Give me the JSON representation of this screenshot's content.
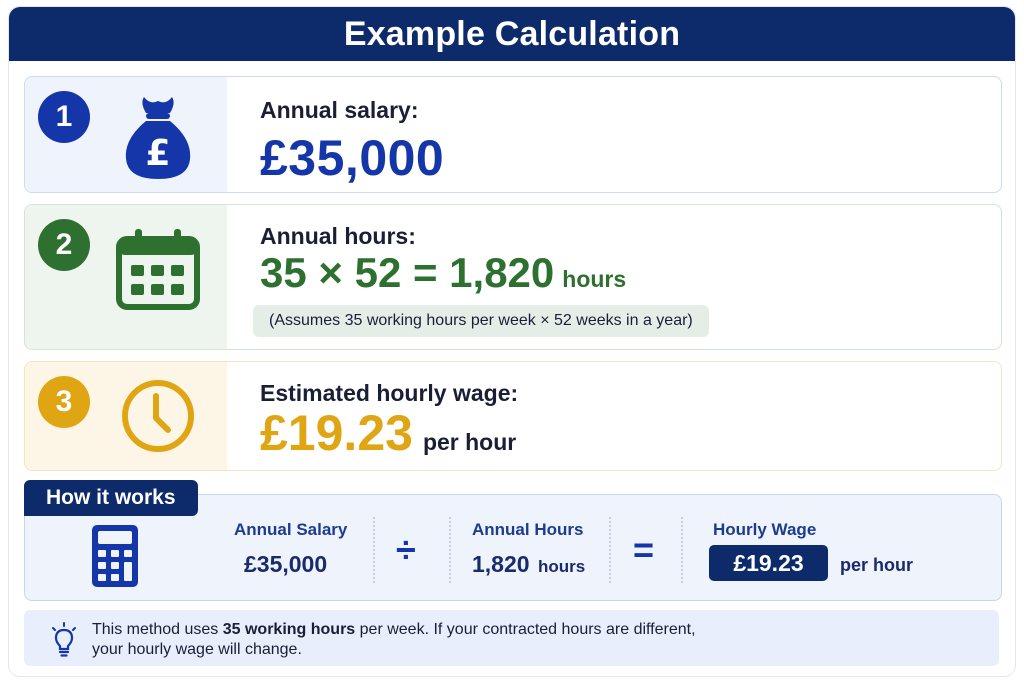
{
  "title": "Example Calculation",
  "steps": [
    {
      "number": "1",
      "label": "Annual salary:",
      "value": "£35,000",
      "icon": "money-bag-icon",
      "color": "#1436a8"
    },
    {
      "number": "2",
      "label": "Annual hours:",
      "value": "35 × 52 = 1,820",
      "unit": "hours",
      "note": "(Assumes 35 working hours per week × 52 weeks in a year)",
      "icon": "calendar-icon",
      "color": "#2e7030"
    },
    {
      "number": "3",
      "label": "Estimated hourly wage:",
      "value": "£19.23",
      "unit": "per hour",
      "icon": "clock-icon",
      "color": "#dfa513"
    }
  ],
  "how": {
    "tab": "How it works",
    "icon": "calculator-icon",
    "salary_head": "Annual Salary",
    "salary_value": "£35,000",
    "divide": "÷",
    "hours_head": "Annual Hours",
    "hours_value": "1,820",
    "hours_unit": "hours",
    "equals": "=",
    "wage_head": "Hourly Wage",
    "wage_value": "£19.23",
    "wage_unit": "per hour"
  },
  "note": {
    "icon": "lightbulb-icon",
    "pre": "This method uses ",
    "bold": "35 working hours",
    "post": " per week. If your contracted hours are different,",
    "line2": "your hourly wage will change."
  }
}
